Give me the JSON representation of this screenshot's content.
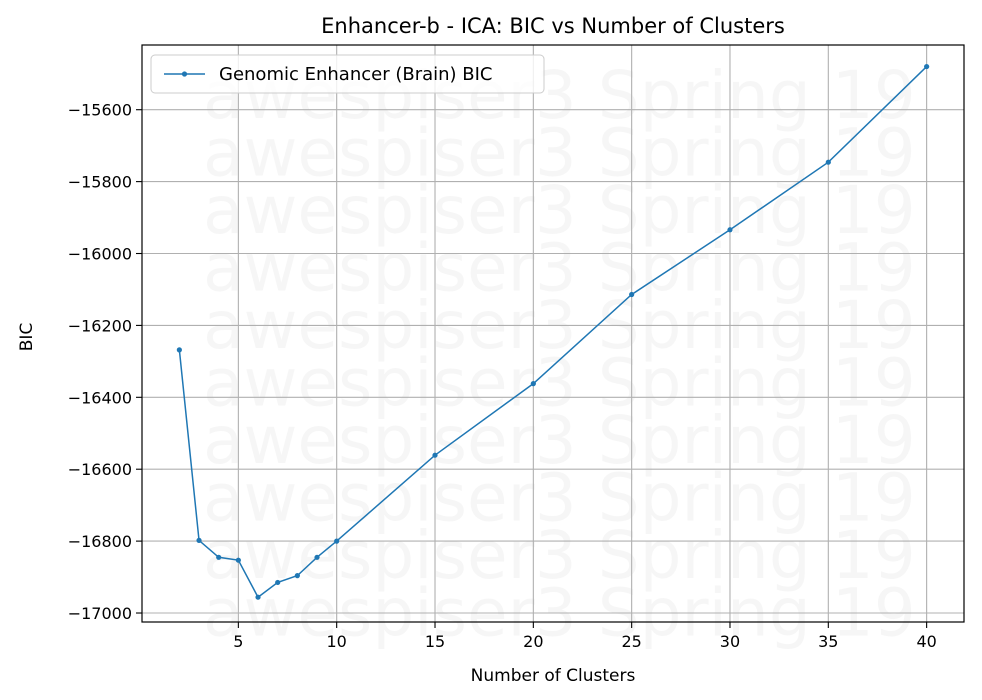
{
  "chart_data": {
    "type": "line",
    "title": "Enhancer-b - ICA: BIC vs Number of Clusters",
    "xlabel": "Number of Clusters",
    "ylabel": "BIC",
    "xlim": [
      0.1,
      41.9
    ],
    "ylim": [
      -17025,
      -15420
    ],
    "xticks": [
      5,
      10,
      15,
      20,
      25,
      30,
      35,
      40
    ],
    "yticks": [
      -17000,
      -16800,
      -16600,
      -16400,
      -16200,
      -16000,
      -15800,
      -15600
    ],
    "grid": true,
    "legend_position": "top-left",
    "watermark": "awespiser3 Spring 19",
    "series": [
      {
        "name": "Genomic Enhancer (Brain) BIC",
        "color": "#1f77b4",
        "x": [
          2,
          3,
          4,
          5,
          6,
          7,
          8,
          9,
          10,
          15,
          20,
          25,
          30,
          35,
          40
        ],
        "y": [
          -16268,
          -16798,
          -16845,
          -16853,
          -16956,
          -16915,
          -16896,
          -16845,
          -16800,
          -16561,
          -16362,
          -16114,
          -15934,
          -15746,
          -15480
        ]
      }
    ]
  }
}
